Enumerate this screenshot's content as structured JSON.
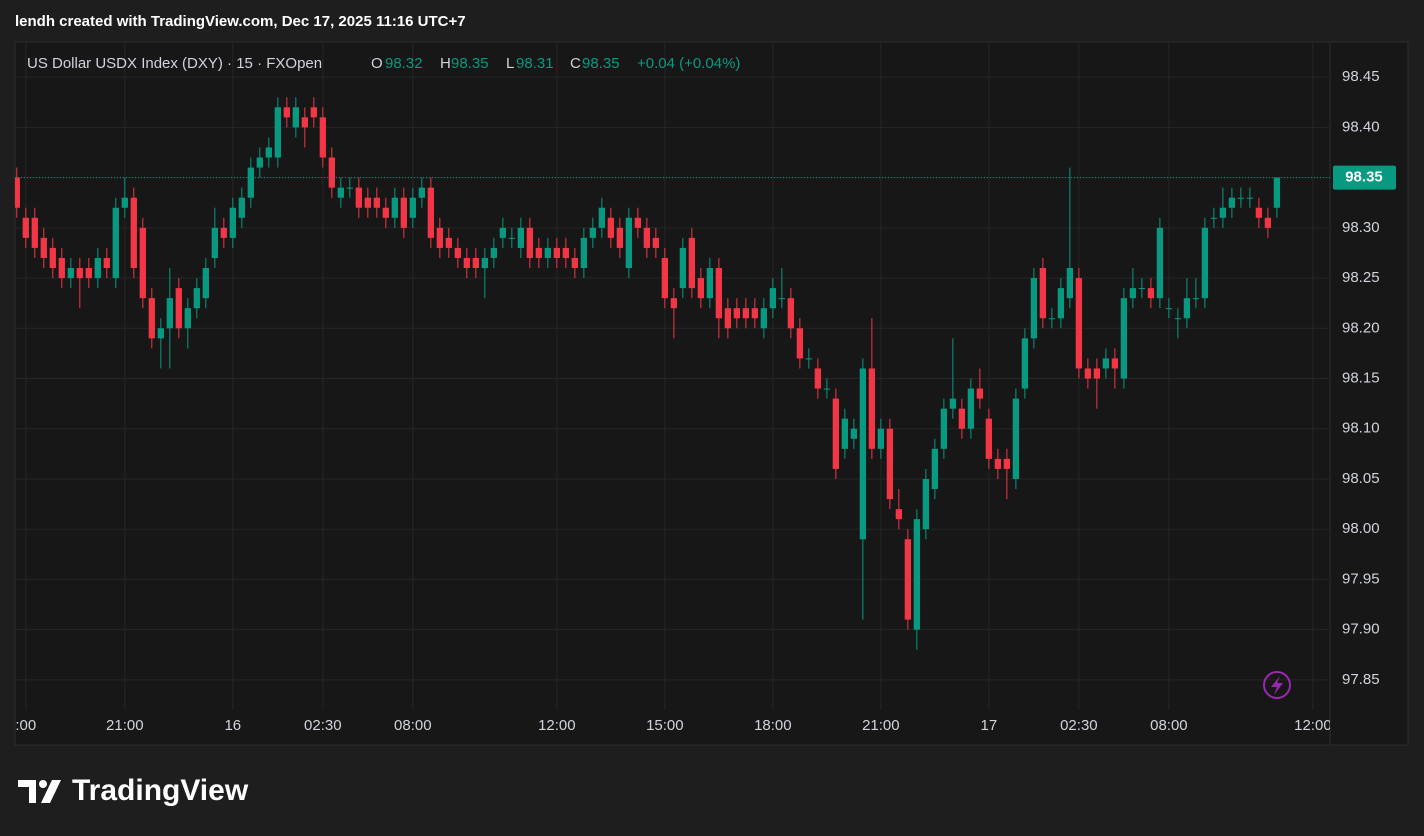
{
  "header": {
    "title": "lendh created with TradingView.com, Dec 17, 2025 11:16 UTC+7"
  },
  "legend": {
    "symbol": "US Dollar USDX Index (DXY) · 15 · FXOpen",
    "o": "O",
    "h": "H",
    "l": "L",
    "c": "C",
    "change": "+0.04 (+0.04%)"
  },
  "logo": "TradingView",
  "chart_data": {
    "type": "candlestick",
    "up_color": "#089981",
    "down_color": "#f23645",
    "grid": true,
    "xlim": [
      -0.2,
      145.9
    ],
    "ylim": [
      97.82,
      98.485
    ],
    "yticks": [
      97.85,
      {
        "value": 97.9,
        "label": "97.90"
      },
      97.95,
      {
        "value": 98.0,
        "label": "98.00"
      },
      98.05,
      {
        "value": 98.1,
        "label": "98.10"
      },
      98.15,
      {
        "value": 98.2,
        "label": "98.20"
      },
      98.25,
      {
        "value": 98.3,
        "label": "98.30"
      },
      98.35,
      {
        "value": 98.4,
        "label": "98.40"
      },
      98.45
    ],
    "xticks": [
      {
        "value": 1,
        "label": ":00"
      },
      {
        "value": 12,
        "label": "21:00"
      },
      {
        "value": 24,
        "label": "16"
      },
      {
        "value": 34,
        "label": "02:30"
      },
      {
        "value": 44,
        "label": "08:00"
      },
      {
        "value": 60,
        "label": "12:00"
      },
      {
        "value": 72,
        "label": "15:00"
      },
      {
        "value": 84,
        "label": "18:00"
      },
      {
        "value": 96,
        "label": "21:00"
      },
      {
        "value": 108,
        "label": "17"
      },
      {
        "value": 118,
        "label": "02:30"
      },
      {
        "value": 128,
        "label": "08:00"
      },
      {
        "value": 144,
        "label": "12:00"
      }
    ],
    "open": [
      98.35,
      98.31,
      98.31,
      98.29,
      98.28,
      98.27,
      98.25,
      98.26,
      98.26,
      98.25,
      98.27,
      98.25,
      98.32,
      98.33,
      98.3,
      98.23,
      98.19,
      98.2,
      98.24,
      98.2,
      98.22,
      98.23,
      98.27,
      98.3,
      98.29,
      98.31,
      98.33,
      98.36,
      98.37,
      98.37,
      98.42,
      98.4,
      98.41,
      98.42,
      98.41,
      98.37,
      98.33,
      98.34,
      98.34,
      98.33,
      98.33,
      98.32,
      98.31,
      98.33,
      98.31,
      98.33,
      98.34,
      98.3,
      98.29,
      98.28,
      98.27,
      98.27,
      98.26,
      98.27,
      98.29,
      98.29,
      98.28,
      98.3,
      98.28,
      98.27,
      98.28,
      98.28,
      98.27,
      98.26,
      98.29,
      98.3,
      98.31,
      98.3,
      98.26,
      98.31,
      98.3,
      98.29,
      98.27,
      98.23,
      98.24,
      98.29,
      98.25,
      98.23,
      98.26,
      98.22,
      98.22,
      98.22,
      98.22,
      98.2,
      98.22,
      98.23,
      98.23,
      98.2,
      98.17,
      98.16,
      98.14,
      98.13,
      98.08,
      98.09,
      97.99,
      98.16,
      98.08,
      98.1,
      98.02,
      97.99,
      97.9,
      98.0,
      98.04,
      98.08,
      98.12,
      98.12,
      98.1,
      98.14,
      98.11,
      98.07,
      98.07,
      98.05,
      98.14,
      98.19,
      98.26,
      98.21,
      98.21,
      98.23,
      98.25,
      98.16,
      98.16,
      98.16,
      98.17,
      98.15,
      98.23,
      98.24,
      98.24,
      98.23,
      98.22,
      98.21,
      98.21,
      98.23,
      98.23,
      98.31,
      98.31,
      98.32,
      98.33,
      98.33,
      98.32,
      98.31,
      98.32
    ],
    "high": [
      98.36,
      98.32,
      98.32,
      98.3,
      98.29,
      98.28,
      98.27,
      98.27,
      98.27,
      98.28,
      98.28,
      98.33,
      98.35,
      98.34,
      98.31,
      98.24,
      98.21,
      98.26,
      98.25,
      98.23,
      98.25,
      98.27,
      98.32,
      98.31,
      98.33,
      98.34,
      98.37,
      98.38,
      98.39,
      98.43,
      98.43,
      98.43,
      98.42,
      98.43,
      98.42,
      98.38,
      98.35,
      98.35,
      98.35,
      98.34,
      98.34,
      98.33,
      98.34,
      98.34,
      98.34,
      98.35,
      98.35,
      98.31,
      98.3,
      98.29,
      98.28,
      98.28,
      98.28,
      98.29,
      98.31,
      98.3,
      98.31,
      98.31,
      98.29,
      98.29,
      98.29,
      98.29,
      98.28,
      98.3,
      98.31,
      98.33,
      98.32,
      98.31,
      98.32,
      98.32,
      98.31,
      98.3,
      98.28,
      98.24,
      98.29,
      98.3,
      98.26,
      98.27,
      98.27,
      98.23,
      98.23,
      98.23,
      98.23,
      98.23,
      98.25,
      98.26,
      98.24,
      98.21,
      98.18,
      98.17,
      98.15,
      98.14,
      98.12,
      98.11,
      98.17,
      98.21,
      98.11,
      98.11,
      98.04,
      98.0,
      98.02,
      98.06,
      98.09,
      98.13,
      98.19,
      98.13,
      98.15,
      98.16,
      98.12,
      98.08,
      98.08,
      98.14,
      98.2,
      98.26,
      98.27,
      98.22,
      98.25,
      98.36,
      98.26,
      98.17,
      98.17,
      98.18,
      98.18,
      98.24,
      98.26,
      98.25,
      98.25,
      98.31,
      98.23,
      98.22,
      98.25,
      98.25,
      98.31,
      98.32,
      98.34,
      98.34,
      98.34,
      98.34,
      98.33,
      98.32,
      98.35
    ],
    "low": [
      98.31,
      98.28,
      98.27,
      98.26,
      98.25,
      98.24,
      98.24,
      98.22,
      98.24,
      98.24,
      98.25,
      98.24,
      98.31,
      98.25,
      98.22,
      98.18,
      98.16,
      98.16,
      98.19,
      98.18,
      98.21,
      98.22,
      98.26,
      98.28,
      98.28,
      98.3,
      98.32,
      98.35,
      98.36,
      98.36,
      98.4,
      98.39,
      98.38,
      98.4,
      98.36,
      98.33,
      98.32,
      98.33,
      98.31,
      98.31,
      98.31,
      98.3,
      98.3,
      98.29,
      98.3,
      98.32,
      98.28,
      98.27,
      98.27,
      98.26,
      98.25,
      98.25,
      98.23,
      98.26,
      98.28,
      98.28,
      98.27,
      98.26,
      98.26,
      98.26,
      98.26,
      98.26,
      98.25,
      98.25,
      98.28,
      98.29,
      98.28,
      98.27,
      98.25,
      98.29,
      98.27,
      98.27,
      98.22,
      98.19,
      98.23,
      98.23,
      98.22,
      98.22,
      98.19,
      98.19,
      98.2,
      98.2,
      98.2,
      98.19,
      98.21,
      98.22,
      98.19,
      98.16,
      98.16,
      98.13,
      98.13,
      98.05,
      98.07,
      98.08,
      97.91,
      98.07,
      98.07,
      98.02,
      98.0,
      97.9,
      97.88,
      97.99,
      98.03,
      98.07,
      98.11,
      98.09,
      98.09,
      98.12,
      98.06,
      98.05,
      98.03,
      98.04,
      98.13,
      98.18,
      98.2,
      98.2,
      98.2,
      98.22,
      98.15,
      98.14,
      98.12,
      98.15,
      98.14,
      98.14,
      98.22,
      98.23,
      98.22,
      98.22,
      98.21,
      98.19,
      98.2,
      98.22,
      98.22,
      98.3,
      98.3,
      98.31,
      98.32,
      98.32,
      98.3,
      98.29,
      98.31
    ],
    "close": [
      98.32,
      98.29,
      98.28,
      98.27,
      98.26,
      98.25,
      98.26,
      98.25,
      98.25,
      98.27,
      98.26,
      98.32,
      98.33,
      98.26,
      98.23,
      98.19,
      98.2,
      98.23,
      98.2,
      98.22,
      98.24,
      98.26,
      98.3,
      98.29,
      98.32,
      98.33,
      98.36,
      98.37,
      98.38,
      98.42,
      98.41,
      98.42,
      98.4,
      98.41,
      98.37,
      98.34,
      98.34,
      98.34,
      98.32,
      98.32,
      98.32,
      98.31,
      98.33,
      98.3,
      98.33,
      98.34,
      98.29,
      98.28,
      98.28,
      98.27,
      98.26,
      98.26,
      98.27,
      98.28,
      98.3,
      98.29,
      98.3,
      98.27,
      98.27,
      98.28,
      98.27,
      98.27,
      98.26,
      98.29,
      98.3,
      98.32,
      98.29,
      98.28,
      98.31,
      98.3,
      98.28,
      98.28,
      98.23,
      98.22,
      98.28,
      98.24,
      98.23,
      98.26,
      98.21,
      98.2,
      98.21,
      98.21,
      98.21,
      98.22,
      98.24,
      98.23,
      98.2,
      98.17,
      98.17,
      98.14,
      98.14,
      98.06,
      98.11,
      98.1,
      98.16,
      98.08,
      98.1,
      98.03,
      98.01,
      97.91,
      98.01,
      98.05,
      98.08,
      98.12,
      98.13,
      98.1,
      98.14,
      98.13,
      98.07,
      98.06,
      98.06,
      98.13,
      98.19,
      98.25,
      98.21,
      98.21,
      98.24,
      98.26,
      98.16,
      98.15,
      98.15,
      98.17,
      98.16,
      98.23,
      98.24,
      98.24,
      98.23,
      98.3,
      98.22,
      98.21,
      98.23,
      98.23,
      98.3,
      98.31,
      98.32,
      98.33,
      98.33,
      98.33,
      98.31,
      98.3,
      98.35
    ]
  }
}
